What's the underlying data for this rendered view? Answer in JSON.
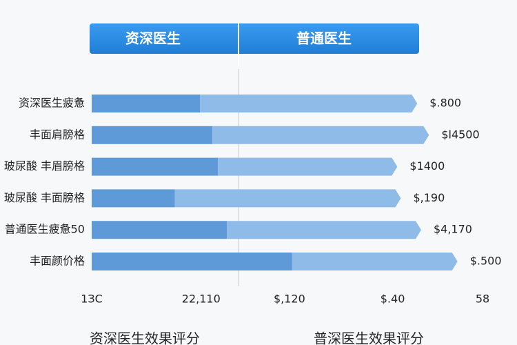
{
  "chart_data": {
    "type": "bar",
    "orientation": "horizontal",
    "stacked": true,
    "categories": [
      "资深医生疲惫",
      "丰面肩膀格",
      "玻尿酸 丰眉膀格",
      "玻尿酸 丰面膀格",
      "普通医生疲惫50",
      "丰面颜价格"
    ],
    "series": [
      {
        "name": "资深医生",
        "color": "#5f9ad8",
        "values": [
          27.7,
          30.9,
          32.3,
          21.3,
          34.6,
          51.3
        ]
      },
      {
        "name": "普通医生",
        "color": "#8fbbe8",
        "values": [
          55.6,
          55.4,
          45.9,
          57.8,
          49.7,
          42.3
        ]
      }
    ],
    "annotations": [
      "$.800",
      "$l4500",
      "$1400",
      "$,190",
      "$4,170",
      "$.500"
    ],
    "xlim": [
      0,
      100
    ],
    "xticks": [
      {
        "value": 0,
        "label": "1ЗC"
      },
      {
        "value": 28,
        "label": "22,110"
      },
      {
        "value": 50.6,
        "label": "$,120"
      },
      {
        "value": 77,
        "label": "$.40"
      },
      {
        "value": 100,
        "label": "58"
      }
    ],
    "axis_labels": [
      "资深医生效果评分",
      "普深医生效果评分"
    ]
  }
}
